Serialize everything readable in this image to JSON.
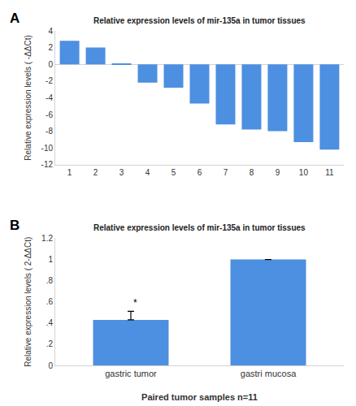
{
  "chart_data": [
    {
      "type": "bar",
      "title": "Relative expression levels of mir-135a in tumor tissues",
      "ylabel": "Relative expression levels ( -ΔΔCt)",
      "categories": [
        "1",
        "2",
        "3",
        "4",
        "5",
        "6",
        "7",
        "8",
        "9",
        "10",
        "11"
      ],
      "values": [
        2.8,
        2.0,
        0.1,
        -2.2,
        -2.8,
        -4.7,
        -7.2,
        -7.8,
        -8.0,
        -9.3,
        -10.2
      ],
      "color": "#4d8fe0",
      "ylim": [
        -12,
        4
      ],
      "yticks": [
        -12,
        -10,
        -8,
        -6,
        -4,
        -2,
        0,
        2,
        4
      ],
      "grid": false,
      "annotations": [
        {
          "text": "A"
        }
      ]
    },
    {
      "type": "bar",
      "title": "Relative expression levels of mir-135a in tumor tissues",
      "xlabel": "Paired tumor samples n=11",
      "ylabel": "Relative expression levels ( 2-ΔΔCt)",
      "categories": [
        "gastric tumor",
        "gastri mucosa"
      ],
      "values": [
        0.43,
        1.0
      ],
      "error": [
        0.08,
        0.0
      ],
      "color": "#4d8fe0",
      "ylim": [
        0,
        1.2
      ],
      "yticks": [
        0,
        {
          "value": 0.2,
          "label": ".2"
        },
        {
          "value": 0.4,
          "label": ".4"
        },
        {
          "value": 0.6,
          "label": ".6"
        },
        {
          "value": 0.8,
          "label": ".8"
        },
        1,
        1.2
      ],
      "grid": false,
      "annotations": [
        {
          "text": "B"
        },
        {
          "text": "*",
          "category": "gastric tumor"
        }
      ]
    }
  ]
}
